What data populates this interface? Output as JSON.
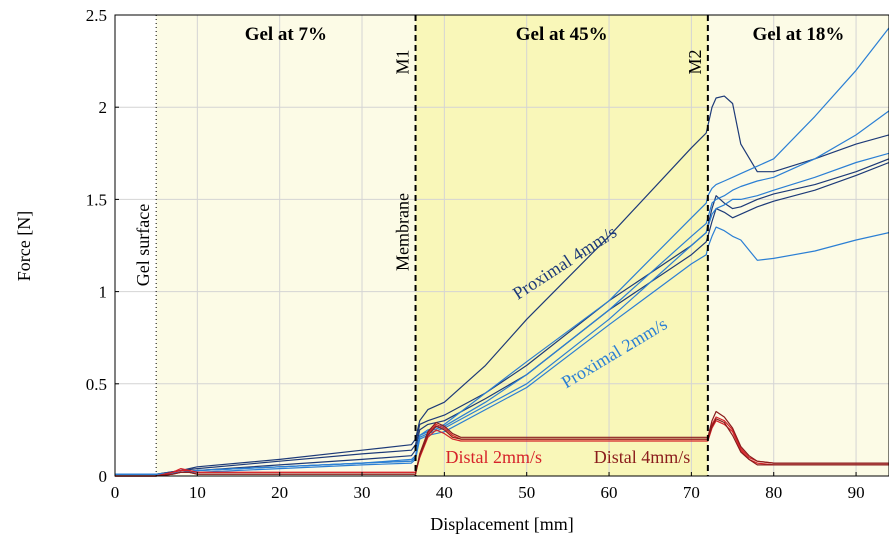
{
  "chart_data": {
    "type": "line",
    "xlabel": "Displacement [mm]",
    "ylabel": "Force [N]",
    "xlim": [
      0,
      94
    ],
    "ylim": [
      0,
      2.5
    ],
    "x_ticks": [
      "0",
      "10",
      "20",
      "30",
      "40",
      "50",
      "60",
      "70",
      "80",
      "90"
    ],
    "y_ticks": [
      "0",
      "0.5",
      "1",
      "1.5",
      "2",
      "2.5"
    ],
    "grid": true,
    "regions": [
      {
        "label": "Gel at 7%",
        "x_start": 5,
        "x_end": 36.5,
        "color": "#fcfbe6"
      },
      {
        "label": "Gel at 45%",
        "x_start": 36.5,
        "x_end": 72,
        "color": "#f9f7b9"
      },
      {
        "label": "Gel at 18%",
        "x_start": 72,
        "x_end": 94,
        "color": "#fcfbe6"
      }
    ],
    "markers": [
      {
        "label": "Gel surface",
        "x": 5,
        "style": "dotted"
      },
      {
        "label": "M1",
        "sublabel": "Membrane",
        "x": 36.5,
        "style": "dashed"
      },
      {
        "label": "M2",
        "x": 72,
        "style": "dashed"
      }
    ],
    "annotations": [
      {
        "text": "Proximal 4mm/s",
        "x": 55,
        "y": 1.13,
        "angle": -33,
        "color": "#1d3a78"
      },
      {
        "text": "Proximal 2mm/s",
        "x": 61,
        "y": 0.64,
        "angle": -31,
        "color": "#2b7fd4"
      },
      {
        "text": "Distal 2mm/s",
        "x": 46,
        "y": 0.07,
        "angle": 0,
        "color": "#d6232a"
      },
      {
        "text": "Distal 4mm/s",
        "x": 64,
        "y": 0.07,
        "angle": 0,
        "color": "#8a1c1c"
      }
    ],
    "series": [
      {
        "color": "#1d3a78",
        "x": [
          0,
          5,
          8,
          10,
          20,
          30,
          36,
          36.5,
          37,
          38,
          40,
          45,
          50,
          60,
          70,
          71.8,
          72,
          72.5,
          73,
          74,
          75,
          76,
          78,
          80,
          85,
          90,
          94
        ],
        "y": [
          0.01,
          0.01,
          0.03,
          0.05,
          0.09,
          0.14,
          0.17,
          0.2,
          0.3,
          0.36,
          0.4,
          0.6,
          0.85,
          1.3,
          1.78,
          1.86,
          1.9,
          2.0,
          2.05,
          2.06,
          2.02,
          1.8,
          1.65,
          1.65,
          1.72,
          1.8,
          1.85
        ]
      },
      {
        "color": "#1d3a78",
        "x": [
          0,
          5,
          8,
          10,
          20,
          30,
          36,
          36.5,
          37,
          38,
          40,
          45,
          50,
          60,
          70,
          71.8,
          72,
          72.5,
          73,
          74,
          75,
          76,
          78,
          80,
          85,
          90,
          94
        ],
        "y": [
          0.01,
          0.01,
          0.03,
          0.04,
          0.08,
          0.12,
          0.14,
          0.17,
          0.28,
          0.3,
          0.33,
          0.45,
          0.6,
          0.95,
          1.25,
          1.32,
          1.36,
          1.45,
          1.52,
          1.48,
          1.45,
          1.46,
          1.5,
          1.53,
          1.58,
          1.65,
          1.72
        ]
      },
      {
        "color": "#1d3a78",
        "x": [
          0,
          5,
          8,
          10,
          20,
          30,
          36,
          36.5,
          37,
          38,
          40,
          45,
          50,
          60,
          70,
          71.8,
          72,
          72.5,
          73,
          74,
          75,
          76,
          78,
          80,
          85,
          90,
          94
        ],
        "y": [
          0.01,
          0.01,
          0.02,
          0.03,
          0.06,
          0.09,
          0.11,
          0.14,
          0.25,
          0.28,
          0.3,
          0.42,
          0.55,
          0.9,
          1.2,
          1.27,
          1.3,
          1.38,
          1.45,
          1.43,
          1.4,
          1.42,
          1.46,
          1.49,
          1.55,
          1.63,
          1.7
        ]
      },
      {
        "color": "#2b7fd4",
        "x": [
          0,
          5,
          8,
          10,
          20,
          30,
          36,
          36.5,
          37,
          38,
          40,
          45,
          50,
          60,
          70,
          71.8,
          72,
          72.5,
          73,
          74,
          75,
          76,
          78,
          80,
          85,
          90,
          94
        ],
        "y": [
          0.01,
          0.01,
          0.02,
          0.03,
          0.05,
          0.07,
          0.08,
          0.1,
          0.22,
          0.25,
          0.28,
          0.45,
          0.62,
          0.95,
          1.4,
          1.48,
          1.52,
          1.56,
          1.58,
          1.6,
          1.62,
          1.64,
          1.68,
          1.72,
          1.95,
          2.2,
          2.43
        ]
      },
      {
        "color": "#2b7fd4",
        "x": [
          0,
          5,
          8,
          10,
          20,
          30,
          36,
          36.5,
          37,
          38,
          40,
          45,
          50,
          60,
          70,
          71.8,
          72,
          72.5,
          73,
          74,
          75,
          76,
          78,
          80,
          85,
          90,
          94
        ],
        "y": [
          0.01,
          0.01,
          0.02,
          0.03,
          0.05,
          0.07,
          0.09,
          0.11,
          0.22,
          0.24,
          0.27,
          0.4,
          0.55,
          0.9,
          1.3,
          1.37,
          1.4,
          1.48,
          1.5,
          1.52,
          1.55,
          1.57,
          1.6,
          1.62,
          1.72,
          1.85,
          1.98
        ]
      },
      {
        "color": "#2b7fd4",
        "x": [
          0,
          5,
          8,
          10,
          20,
          30,
          36,
          36.5,
          37,
          38,
          40,
          45,
          50,
          60,
          70,
          71.8,
          72,
          72.5,
          73,
          74,
          75,
          76,
          78,
          80,
          85,
          90,
          94
        ],
        "y": [
          0.01,
          0.01,
          0.02,
          0.02,
          0.04,
          0.06,
          0.07,
          0.09,
          0.2,
          0.22,
          0.24,
          0.36,
          0.48,
          0.82,
          1.15,
          1.2,
          1.24,
          1.3,
          1.35,
          1.33,
          1.3,
          1.28,
          1.17,
          1.18,
          1.22,
          1.28,
          1.32
        ]
      },
      {
        "color": "#2b7fd4",
        "x": [
          0,
          5,
          8,
          10,
          20,
          30,
          36,
          36.5,
          37,
          38,
          40,
          45,
          50,
          60,
          70,
          71.8,
          72,
          72.5,
          73,
          74,
          75,
          76,
          78,
          80,
          85,
          90,
          94
        ],
        "y": [
          0.01,
          0.01,
          0.02,
          0.03,
          0.05,
          0.07,
          0.08,
          0.1,
          0.21,
          0.23,
          0.26,
          0.38,
          0.5,
          0.85,
          1.25,
          1.32,
          1.35,
          1.42,
          1.45,
          1.47,
          1.5,
          1.5,
          1.52,
          1.55,
          1.62,
          1.7,
          1.75
        ]
      },
      {
        "color": "#d6232a",
        "x": [
          0,
          5,
          7,
          8,
          9,
          10,
          20,
          30,
          36.5,
          37,
          38,
          39,
          40,
          41,
          42,
          43,
          45,
          50,
          60,
          70,
          72,
          72.5,
          73,
          74,
          75,
          76,
          77,
          78,
          80,
          85,
          90,
          94
        ],
        "y": [
          0.0,
          0.0,
          0.02,
          0.03,
          0.03,
          0.02,
          0.02,
          0.02,
          0.02,
          0.1,
          0.23,
          0.28,
          0.26,
          0.22,
          0.2,
          0.2,
          0.2,
          0.2,
          0.2,
          0.2,
          0.2,
          0.28,
          0.32,
          0.3,
          0.25,
          0.15,
          0.1,
          0.08,
          0.07,
          0.07,
          0.07,
          0.07
        ]
      },
      {
        "color": "#d6232a",
        "x": [
          0,
          5,
          7,
          8,
          9,
          10,
          20,
          30,
          36.5,
          37,
          38,
          39,
          40,
          41,
          42,
          43,
          45,
          50,
          60,
          70,
          72,
          72.5,
          73,
          74,
          75,
          76,
          77,
          78,
          80,
          85,
          90,
          94
        ],
        "y": [
          0.0,
          0.0,
          0.02,
          0.04,
          0.03,
          0.02,
          0.02,
          0.02,
          0.02,
          0.1,
          0.21,
          0.25,
          0.23,
          0.2,
          0.19,
          0.19,
          0.19,
          0.19,
          0.19,
          0.19,
          0.19,
          0.26,
          0.3,
          0.28,
          0.24,
          0.14,
          0.09,
          0.07,
          0.06,
          0.06,
          0.06,
          0.06
        ]
      },
      {
        "color": "#8a1c1c",
        "x": [
          0,
          5,
          7,
          8,
          9,
          10,
          20,
          30,
          36.5,
          37,
          38,
          39,
          40,
          41,
          42,
          43,
          45,
          50,
          60,
          70,
          72,
          72.5,
          73,
          74,
          75,
          76,
          77,
          78,
          80,
          85,
          90,
          94
        ],
        "y": [
          0.0,
          0.0,
          0.01,
          0.02,
          0.02,
          0.01,
          0.01,
          0.01,
          0.01,
          0.12,
          0.24,
          0.29,
          0.27,
          0.23,
          0.21,
          0.21,
          0.21,
          0.21,
          0.21,
          0.21,
          0.21,
          0.3,
          0.35,
          0.32,
          0.26,
          0.16,
          0.11,
          0.08,
          0.07,
          0.07,
          0.07,
          0.07
        ]
      },
      {
        "color": "#8a1c1c",
        "x": [
          0,
          5,
          7,
          8,
          9,
          10,
          20,
          30,
          36.5,
          37,
          38,
          39,
          40,
          41,
          42,
          43,
          45,
          50,
          60,
          70,
          72,
          72.5,
          73,
          74,
          75,
          76,
          77,
          78,
          80,
          85,
          90,
          94
        ],
        "y": [
          0.0,
          0.0,
          0.01,
          0.02,
          0.02,
          0.01,
          0.01,
          0.01,
          0.01,
          0.11,
          0.22,
          0.27,
          0.25,
          0.21,
          0.2,
          0.2,
          0.2,
          0.2,
          0.2,
          0.2,
          0.2,
          0.27,
          0.31,
          0.29,
          0.22,
          0.13,
          0.09,
          0.06,
          0.06,
          0.06,
          0.06,
          0.06
        ]
      }
    ]
  }
}
